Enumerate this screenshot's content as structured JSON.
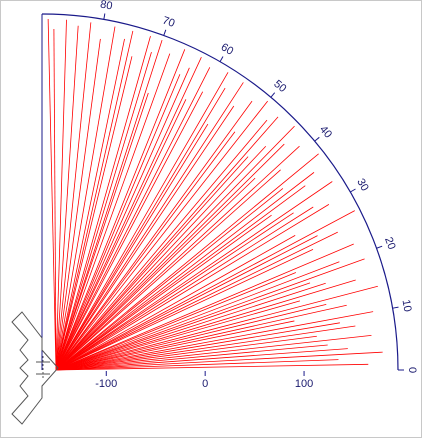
{
  "chart_data": {
    "type": "polar-rays",
    "color": "#ff0000",
    "axis_color": "#1a1a8a",
    "thetalim": [
      0,
      90
    ],
    "thetaticks": [
      0,
      10,
      20,
      30,
      40,
      50,
      60,
      70,
      80
    ],
    "rlim": [
      0,
      360
    ],
    "xlim": [
      -165,
      195
    ],
    "xticks": [
      -100,
      0,
      100
    ],
    "theta": [
      1,
      2,
      3,
      4,
      5,
      6,
      7,
      8,
      9,
      10,
      11,
      12,
      13,
      14,
      15,
      16,
      17,
      18,
      19,
      20,
      21,
      22,
      24,
      25,
      26,
      27,
      28,
      30,
      31,
      32,
      33,
      34,
      35,
      36,
      37,
      38,
      40,
      41,
      42,
      43,
      44,
      45,
      46,
      47,
      48,
      50,
      51,
      52,
      54,
      55,
      56,
      57,
      58,
      60,
      61,
      62,
      63,
      64,
      65,
      66,
      68,
      69,
      70,
      71,
      72,
      74,
      75,
      76,
      78,
      80,
      82,
      84,
      86,
      88,
      89
    ],
    "r": [
      330,
      300,
      345,
      310,
      290,
      335,
      280,
      320,
      305,
      340,
      260,
      315,
      295,
      350,
      270,
      330,
      300,
      285,
      345,
      320,
      275,
      340,
      300,
      330,
      310,
      355,
      290,
      335,
      320,
      300,
      350,
      280,
      325,
      340,
      305,
      355,
      315,
      345,
      290,
      335,
      355,
      320,
      300,
      350,
      340,
      355,
      310,
      345,
      330,
      355,
      300,
      340,
      355,
      325,
      350,
      310,
      355,
      340,
      330,
      355,
      345,
      300,
      355,
      340,
      355,
      330,
      355,
      345,
      355,
      340,
      355,
      350,
      355,
      345,
      355
    ]
  }
}
